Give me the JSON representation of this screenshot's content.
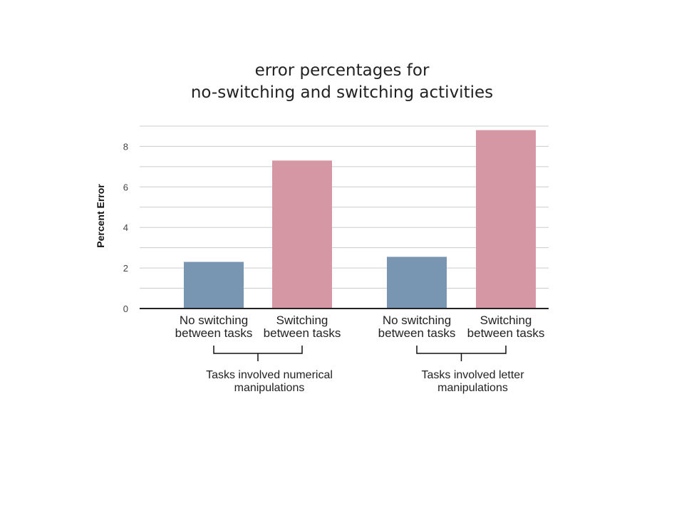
{
  "chart_data": {
    "type": "bar",
    "title": [
      "error percentages for",
      "no-switching and switching activities"
    ],
    "ylabel": "Percent Error",
    "xlabel": "",
    "ylim": [
      0,
      9
    ],
    "yticks": [
      0,
      2,
      4,
      6,
      8
    ],
    "grid": true,
    "categories": [
      "No switching between tasks",
      "Switching between tasks",
      "No switching between tasks",
      "Switching between tasks"
    ],
    "category_lines": [
      [
        "No switching",
        "between tasks"
      ],
      [
        "Switching",
        "between tasks"
      ],
      [
        "No switching",
        "between tasks"
      ],
      [
        "Switching",
        "between tasks"
      ]
    ],
    "values": [
      2.3,
      7.3,
      2.55,
      8.8
    ],
    "groups": [
      {
        "label_lines": [
          "Tasks involved numerical",
          "manipulations"
        ],
        "categories": [
          0,
          1
        ]
      },
      {
        "label_lines": [
          "Tasks involved letter",
          "manipulations"
        ],
        "categories": [
          2,
          3
        ]
      }
    ],
    "colors": {
      "no_switching": "#7895b2",
      "switching": "#d597a4",
      "grid": "#cccccc",
      "axis": "#222222"
    }
  }
}
